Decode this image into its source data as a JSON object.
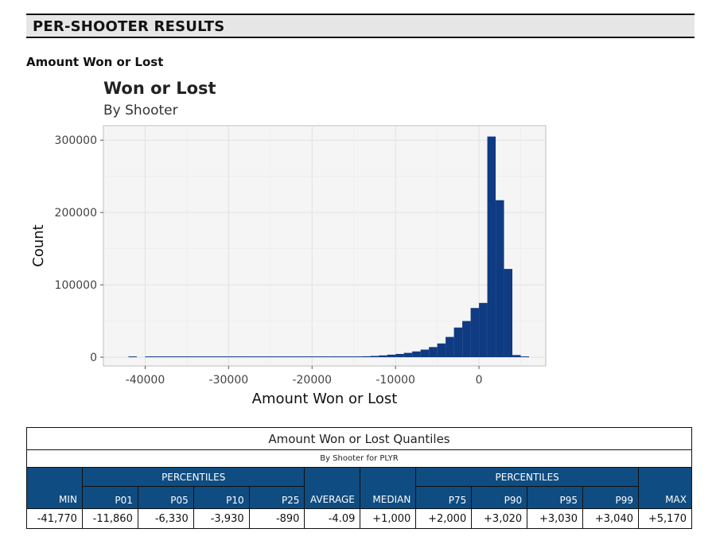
{
  "section": {
    "title": "PER-SHOOTER RESULTS"
  },
  "subsection": {
    "title": "Amount Won or Lost"
  },
  "chart_data": {
    "type": "bar",
    "title": "Won or Lost",
    "subtitle": "By Shooter",
    "xlabel": "Amount Won or Lost",
    "ylabel": "Count",
    "xlim": [
      -45000,
      8000
    ],
    "ylim": [
      -12000,
      320000
    ],
    "xticks": [
      -40000,
      -30000,
      -20000,
      -10000,
      0
    ],
    "xtick_labels": [
      "-40000",
      "-30000",
      "-20000",
      "-10000",
      "0"
    ],
    "yticks": [
      0,
      100000,
      200000,
      300000
    ],
    "ytick_labels": [
      "0",
      "100000",
      "200000",
      "300000"
    ],
    "grid": true,
    "legend": "none",
    "bar_color": "#0f3b82",
    "bin_width": 1000,
    "bins": [
      {
        "x0": -42000,
        "x1": -41000,
        "count": 200
      },
      {
        "x0": -40000,
        "x1": -39000,
        "count": 200
      },
      {
        "x0": -39000,
        "x1": -38000,
        "count": 150
      },
      {
        "x0": -38000,
        "x1": -37000,
        "count": 150
      },
      {
        "x0": -37000,
        "x1": -36000,
        "count": 150
      },
      {
        "x0": -36000,
        "x1": -35000,
        "count": 150
      },
      {
        "x0": -35000,
        "x1": -34000,
        "count": 150
      },
      {
        "x0": -34000,
        "x1": -33000,
        "count": 150
      },
      {
        "x0": -33000,
        "x1": -32000,
        "count": 150
      },
      {
        "x0": -32000,
        "x1": -31000,
        "count": 150
      },
      {
        "x0": -31000,
        "x1": -30000,
        "count": 150
      },
      {
        "x0": -30000,
        "x1": -29000,
        "count": 200
      },
      {
        "x0": -29000,
        "x1": -28000,
        "count": 200
      },
      {
        "x0": -28000,
        "x1": -27000,
        "count": 200
      },
      {
        "x0": -27000,
        "x1": -26000,
        "count": 200
      },
      {
        "x0": -26000,
        "x1": -25000,
        "count": 200
      },
      {
        "x0": -25000,
        "x1": -24000,
        "count": 250
      },
      {
        "x0": -24000,
        "x1": -23000,
        "count": 250
      },
      {
        "x0": -23000,
        "x1": -22000,
        "count": 300
      },
      {
        "x0": -22000,
        "x1": -21000,
        "count": 300
      },
      {
        "x0": -21000,
        "x1": -20000,
        "count": 350
      },
      {
        "x0": -20000,
        "x1": -19000,
        "count": 400
      },
      {
        "x0": -19000,
        "x1": -18000,
        "count": 450
      },
      {
        "x0": -18000,
        "x1": -17000,
        "count": 500
      },
      {
        "x0": -17000,
        "x1": -16000,
        "count": 600
      },
      {
        "x0": -16000,
        "x1": -15000,
        "count": 800
      },
      {
        "x0": -15000,
        "x1": -14000,
        "count": 1000
      },
      {
        "x0": -14000,
        "x1": -13000,
        "count": 1300
      },
      {
        "x0": -13000,
        "x1": -12000,
        "count": 1800
      },
      {
        "x0": -12000,
        "x1": -11000,
        "count": 2500
      },
      {
        "x0": -11000,
        "x1": -10000,
        "count": 3500
      },
      {
        "x0": -10000,
        "x1": -9000,
        "count": 4500
      },
      {
        "x0": -9000,
        "x1": -8000,
        "count": 6000
      },
      {
        "x0": -8000,
        "x1": -7000,
        "count": 8000
      },
      {
        "x0": -7000,
        "x1": -6000,
        "count": 10500
      },
      {
        "x0": -6000,
        "x1": -5000,
        "count": 14000
      },
      {
        "x0": -5000,
        "x1": -4000,
        "count": 19000
      },
      {
        "x0": -4000,
        "x1": -3000,
        "count": 28000
      },
      {
        "x0": -3000,
        "x1": -2000,
        "count": 41000
      },
      {
        "x0": -2000,
        "x1": -1000,
        "count": 50000
      },
      {
        "x0": -1000,
        "x1": 0,
        "count": 68000
      },
      {
        "x0": 0,
        "x1": 1000,
        "count": 75000
      },
      {
        "x0": 1000,
        "x1": 2000,
        "count": 305000
      },
      {
        "x0": 2000,
        "x1": 3000,
        "count": 217000
      },
      {
        "x0": 3000,
        "x1": 4000,
        "count": 122000
      },
      {
        "x0": 4000,
        "x1": 5000,
        "count": 3000
      },
      {
        "x0": 5000,
        "x1": 6000,
        "count": 500
      }
    ]
  },
  "table": {
    "title": "Amount Won or Lost Quantiles",
    "subtitle": "By Shooter for PLYR",
    "group_label_left": "PERCENTILES",
    "group_label_right": "PERCENTILES",
    "headers": {
      "min": "MIN",
      "p01": "P01",
      "p05": "P05",
      "p10": "P10",
      "p25": "P25",
      "average": "AVERAGE",
      "median": "MEDIAN",
      "p75": "P75",
      "p90": "P90",
      "p95": "P95",
      "p99": "P99",
      "max": "MAX"
    },
    "values": {
      "min": "-41,770",
      "p01": "-11,860",
      "p05": "-6,330",
      "p10": "-3,930",
      "p25": "-890",
      "average": "-4.09",
      "median": "+1,000",
      "p75": "+2,000",
      "p90": "+3,020",
      "p95": "+3,030",
      "p99": "+3,040",
      "max": "+5,170"
    }
  }
}
